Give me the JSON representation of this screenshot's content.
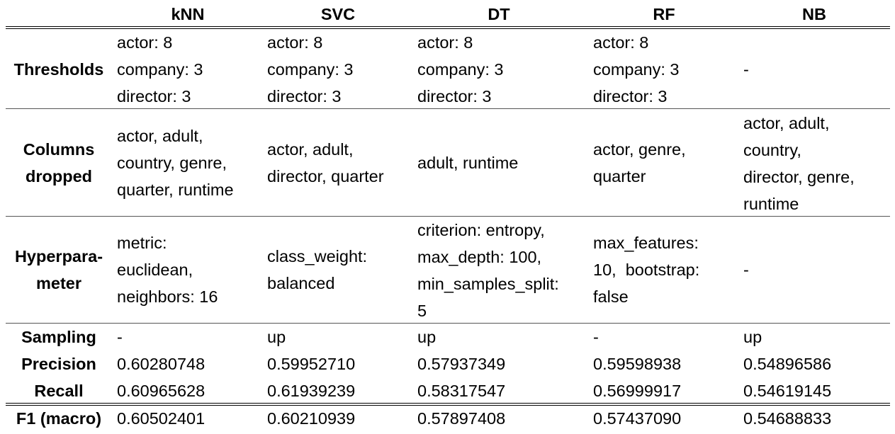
{
  "columns": [
    "kNN",
    "SVC",
    "DT",
    "RF",
    "NB"
  ],
  "rows": [
    {
      "label": "Thresholds",
      "cells": [
        "actor: 8\ncompany: 3\ndirector: 3",
        "actor: 8\ncompany: 3\ndirector: 3",
        "actor: 8\ncompany: 3\ndirector: 3",
        "actor: 8\ncompany: 3\ndirector: 3",
        "-"
      ]
    },
    {
      "label": "Columns\ndropped",
      "cells": [
        "actor, adult,\ncountry, genre,\nquarter, runtime",
        "actor, adult,\ndirector, quarter",
        "adult, runtime",
        "actor, genre,\nquarter",
        "actor, adult,\ncountry,\ndirector, genre,\nruntime"
      ]
    },
    {
      "label": "Hyperpara-\nmeter",
      "cells": [
        "metric:\neuclidean,\nneighbors: 16",
        "class_weight:\nbalanced",
        "criterion: entropy,\nmax_depth: 100,\nmin_samples_split:\n5",
        "max_features:\n10,  bootstrap:\nfalse",
        "-"
      ]
    },
    {
      "label": "Sampling",
      "cells": [
        "-",
        "up",
        "up",
        "-",
        "up"
      ]
    },
    {
      "label": "Precision",
      "cells": [
        "0.60280748",
        "0.59952710",
        "0.57937349",
        "0.59598938",
        "0.54896586"
      ]
    },
    {
      "label": "Recall",
      "cells": [
        "0.60965628",
        "0.61939239",
        "0.58317547",
        "0.56999917",
        "0.54619145"
      ]
    },
    {
      "label": "F1 (macro)",
      "cells": [
        "0.60502401",
        "0.60210939",
        "0.57897408",
        "0.57437090",
        "0.54688833"
      ]
    }
  ]
}
